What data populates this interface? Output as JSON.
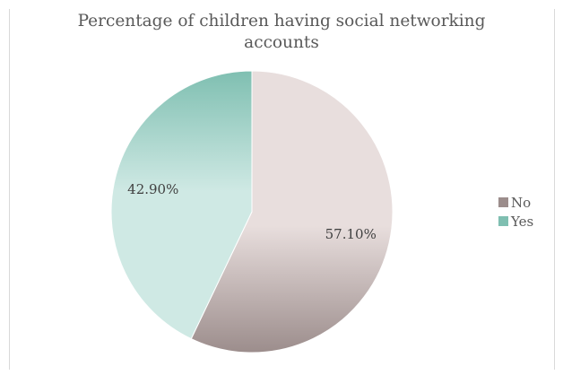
{
  "chart_data": {
    "type": "pie",
    "title_lines": [
      "Percentage of children having social networking",
      "accounts"
    ],
    "slices": [
      {
        "label": "No",
        "value": 57.1,
        "display": "57.10%",
        "color": "#e8dedd",
        "shade": "#9c8d8c"
      },
      {
        "label": "Yes",
        "value": 42.9,
        "display": "42.90%",
        "color": "#cfe9e4",
        "shade": "#7fbfb1"
      }
    ],
    "start_angle": "12 o'clock",
    "direction": "clockwise",
    "legend_position": "right"
  }
}
